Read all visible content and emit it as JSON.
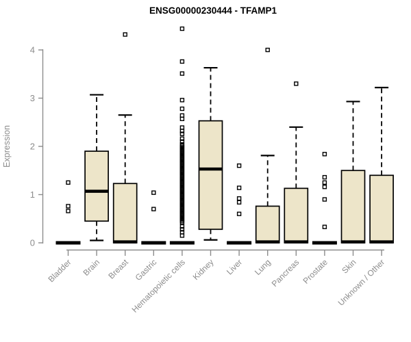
{
  "title": "ENSG00000230444 - TFAMP1",
  "style": {
    "box_fill": "#EDE5C9",
    "box_stroke": "#000000",
    "median_color": "#000000",
    "whisker_color": "#000000",
    "outlier_color": "#000000",
    "axis_color": "#8C8C8C",
    "tick_label_color": "#8C8C8C",
    "title_color": "#000000",
    "background": "#FFFFFF"
  },
  "chart_data": {
    "type": "boxplot",
    "title": "ENSG00000230444 - TFAMP1",
    "xlabel": "",
    "ylabel": "Expression",
    "ylim": [
      0,
      4.5
    ],
    "yticks": [
      0,
      1,
      2,
      3,
      4
    ],
    "grid": false,
    "legend": false,
    "categories": [
      "Bladder",
      "Brain",
      "Breast",
      "Gastric",
      "Hematopoietic cells",
      "Kidney",
      "Liver",
      "Lung",
      "Pancreas",
      "Prostate",
      "Skin",
      "Unknown / Other"
    ],
    "series": [
      {
        "name": "Bladder",
        "whisker_low": 0,
        "q1": 0,
        "median": 0,
        "q3": 0,
        "whisker_high": 0,
        "outliers": [
          1.25,
          0.76,
          0.66
        ]
      },
      {
        "name": "Brain",
        "whisker_low": 0.05,
        "q1": 0.45,
        "median": 1.07,
        "q3": 1.9,
        "whisker_high": 3.07,
        "outliers": []
      },
      {
        "name": "Breast",
        "whisker_low": 0,
        "q1": 0,
        "median": 0.02,
        "q3": 1.23,
        "whisker_high": 2.65,
        "outliers": [
          4.32
        ]
      },
      {
        "name": "Gastric",
        "whisker_low": 0,
        "q1": 0,
        "median": 0,
        "q3": 0,
        "whisker_high": 0,
        "outliers": [
          1.04,
          0.7
        ]
      },
      {
        "name": "Hematopoietic cells",
        "whisker_low": 0,
        "q1": 0,
        "median": 0,
        "q3": 0,
        "whisker_high": 0,
        "outliers": [
          4.44,
          3.76,
          3.51,
          2.96,
          2.78,
          2.64,
          2.57,
          2.39,
          2.32,
          2.26,
          2.16,
          2.1,
          2.04,
          2.01,
          1.98,
          1.95,
          1.92,
          1.89,
          1.86,
          1.83,
          1.8,
          1.77,
          1.74,
          1.71,
          1.68,
          1.65,
          1.62,
          1.59,
          1.56,
          1.53,
          1.5,
          1.47,
          1.44,
          1.41,
          1.38,
          1.35,
          1.32,
          1.29,
          1.26,
          1.23,
          1.2,
          1.17,
          1.14,
          1.11,
          1.08,
          1.05,
          1.02,
          0.99,
          0.96,
          0.93,
          0.9,
          0.87,
          0.84,
          0.81,
          0.78,
          0.75,
          0.72,
          0.69,
          0.66,
          0.63,
          0.6,
          0.57,
          0.54,
          0.51,
          0.48,
          0.45,
          0.42,
          0.34,
          0.28,
          0.22,
          0.15
        ]
      },
      {
        "name": "Kidney",
        "whisker_low": 0.06,
        "q1": 0.28,
        "median": 1.53,
        "q3": 2.53,
        "whisker_high": 3.63,
        "outliers": []
      },
      {
        "name": "Liver",
        "whisker_low": 0,
        "q1": 0,
        "median": 0,
        "q3": 0,
        "whisker_high": 0,
        "outliers": [
          1.6,
          1.14,
          0.92,
          0.84,
          0.6
        ]
      },
      {
        "name": "Lung",
        "whisker_low": 0,
        "q1": 0,
        "median": 0.02,
        "q3": 0.76,
        "whisker_high": 1.81,
        "outliers": [
          4.0
        ]
      },
      {
        "name": "Pancreas",
        "whisker_low": 0,
        "q1": 0,
        "median": 0.02,
        "q3": 1.13,
        "whisker_high": 2.4,
        "outliers": [
          3.3
        ]
      },
      {
        "name": "Prostate",
        "whisker_low": 0,
        "q1": 0,
        "median": 0,
        "q3": 0,
        "whisker_high": 0,
        "outliers": [
          1.84,
          1.36,
          1.25,
          1.16,
          0.9,
          0.33
        ]
      },
      {
        "name": "Skin",
        "whisker_low": 0,
        "q1": 0,
        "median": 0.02,
        "q3": 1.5,
        "whisker_high": 2.93,
        "outliers": []
      },
      {
        "name": "Unknown / Other",
        "whisker_low": 0,
        "q1": 0,
        "median": 0.02,
        "q3": 1.4,
        "whisker_high": 3.22,
        "outliers": []
      }
    ]
  }
}
